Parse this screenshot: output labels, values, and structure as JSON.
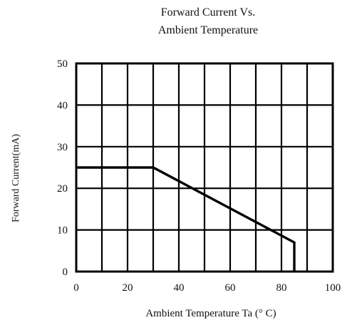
{
  "chart_data": {
    "type": "line",
    "title_lines": [
      "Forward Current Vs.",
      "Ambient Temperature"
    ],
    "xlabel": "Ambient Temperature Ta (° C)",
    "ylabel": "Forward Current(mA)",
    "xlim": [
      0,
      100
    ],
    "ylim": [
      0,
      50
    ],
    "x_ticks": [
      0,
      20,
      40,
      60,
      80,
      100
    ],
    "y_ticks": [
      0,
      10,
      20,
      30,
      40,
      50
    ],
    "x_tick_labels": [
      "0",
      "20",
      "40",
      "60",
      "80",
      "100"
    ],
    "y_tick_labels": [
      "0",
      "10",
      "20",
      "30",
      "40",
      "50"
    ],
    "x_grid": [
      10,
      20,
      30,
      40,
      50,
      60,
      70,
      80,
      90
    ],
    "y_grid": [
      10,
      20,
      30,
      40
    ],
    "grid": true,
    "series": [
      {
        "x": [
          0,
          30,
          85,
          85
        ],
        "y": [
          25,
          25,
          7,
          0
        ]
      }
    ]
  }
}
